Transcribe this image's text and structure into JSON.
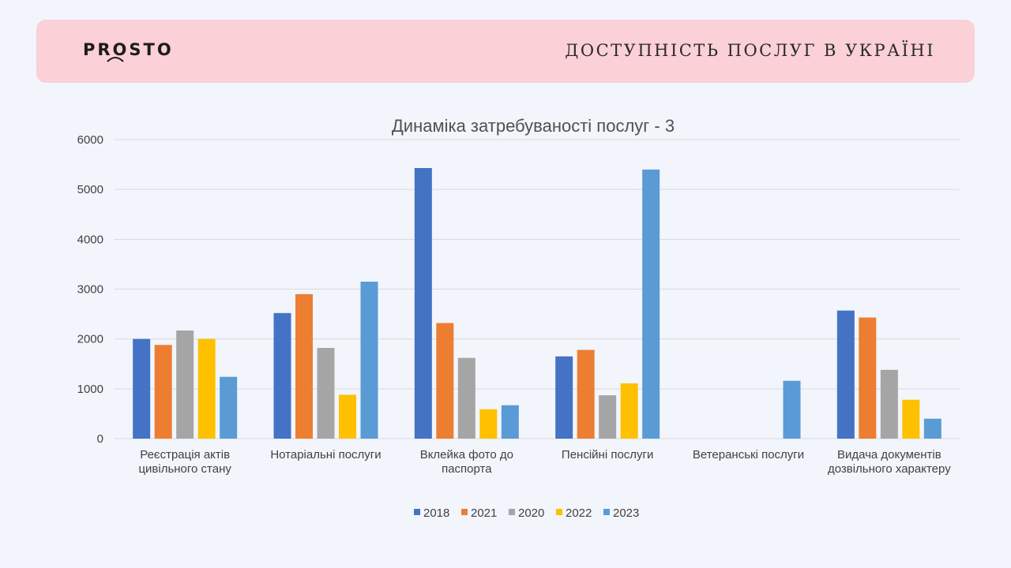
{
  "header": {
    "logo_text": "PROSTO",
    "title": "ДОСТУПНІСТЬ ПОСЛУГ В УКРАЇНІ"
  },
  "chart_data": {
    "type": "bar",
    "title": "Динаміка затребуваності послуг - 3",
    "categories": [
      [
        "Реєстрація актів",
        "цивільного стану"
      ],
      [
        "Нотаріальні послуги"
      ],
      [
        "Вклейка фото до",
        "паспорта"
      ],
      [
        "Пенсійні послуги"
      ],
      [
        "Ветеранські послуги"
      ],
      [
        "Видача документів",
        "дозвільного характеру"
      ]
    ],
    "series": [
      {
        "name": "2018",
        "color": "#4472c4",
        "values": [
          2000,
          2520,
          5430,
          1650,
          0,
          2570
        ]
      },
      {
        "name": "2021",
        "color": "#ed7d31",
        "values": [
          1880,
          2900,
          2320,
          1780,
          0,
          2430
        ]
      },
      {
        "name": "2020",
        "color": "#a5a5a5",
        "values": [
          2170,
          1820,
          1620,
          870,
          0,
          1380
        ]
      },
      {
        "name": "2022",
        "color": "#ffc000",
        "values": [
          2000,
          880,
          590,
          1110,
          0,
          780
        ]
      },
      {
        "name": "2023",
        "color": "#5b9bd5",
        "values": [
          1240,
          3150,
          670,
          5400,
          1160,
          400
        ]
      }
    ],
    "yticks": [
      "0",
      "1000",
      "2000",
      "3000",
      "4000",
      "5000",
      "6000"
    ],
    "ylim": [
      0,
      6000
    ],
    "grid": true,
    "legend_position": "bottom"
  }
}
